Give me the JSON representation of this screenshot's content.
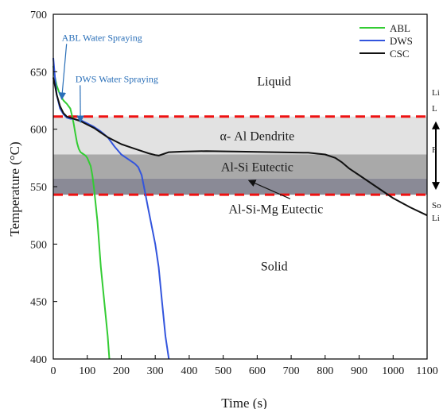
{
  "chart_data": {
    "type": "line",
    "title": "",
    "xlabel": "Time (s)",
    "ylabel": "Temperature (°C)",
    "xlim": [
      0,
      1100
    ],
    "ylim": [
      400,
      700
    ],
    "xticks": [
      0,
      100,
      200,
      300,
      400,
      500,
      600,
      700,
      800,
      900,
      1000,
      1100
    ],
    "yticks": [
      400,
      450,
      500,
      550,
      600,
      650,
      700
    ],
    "grid": false,
    "legend_position": "top-right",
    "series": [
      {
        "name": "ABL",
        "color": "#33cc33",
        "x": [
          0,
          5,
          10,
          20,
          30,
          40,
          50,
          55,
          60,
          65,
          70,
          75,
          80,
          85,
          90,
          95,
          100,
          110,
          115,
          120,
          130,
          140,
          150,
          160,
          165
        ],
        "y": [
          655,
          645,
          638,
          630,
          625,
          622,
          618,
          612,
          605,
          596,
          588,
          583,
          580,
          579,
          578,
          577,
          575,
          568,
          560,
          548,
          520,
          480,
          450,
          420,
          400
        ]
      },
      {
        "name": "DWS",
        "color": "#3355dd",
        "x": [
          0,
          5,
          10,
          20,
          30,
          40,
          50,
          60,
          70,
          80,
          100,
          120,
          140,
          160,
          180,
          200,
          220,
          240,
          250,
          260,
          270,
          280,
          290,
          300,
          310,
          320,
          330,
          340
        ],
        "y": [
          662,
          645,
          630,
          618,
          613,
          610,
          609,
          609,
          608,
          608,
          605,
          602,
          598,
          593,
          585,
          578,
          574,
          570,
          567,
          560,
          545,
          530,
          515,
          500,
          480,
          450,
          420,
          400
        ]
      },
      {
        "name": "CSC",
        "color": "#111111",
        "x": [
          0,
          5,
          10,
          20,
          30,
          40,
          50,
          60,
          80,
          100,
          120,
          140,
          160,
          180,
          200,
          220,
          240,
          260,
          280,
          300,
          310,
          320,
          340,
          380,
          450,
          550,
          650,
          750,
          800,
          830,
          850,
          870,
          900,
          950,
          1000,
          1050,
          1100
        ],
        "y": [
          645,
          638,
          630,
          620,
          614,
          611,
          610,
          609,
          607,
          604,
          601,
          597,
          593,
          590,
          587,
          585,
          583,
          581,
          579,
          577.5,
          577,
          578,
          580,
          580.5,
          581,
          580.5,
          580,
          579.5,
          578,
          575,
          571,
          566,
          560,
          550,
          540,
          532,
          525
        ]
      }
    ],
    "bands": [
      {
        "label": "α- Al Dendrite",
        "y_from": 578,
        "y_to": 611,
        "color": "#e2e2e2"
      },
      {
        "label": "Al-Si Eutectic",
        "y_from": 557,
        "y_to": 578,
        "color": "#a9a9a9"
      },
      {
        "label": "",
        "y_from": 543,
        "y_to": 557,
        "color": "#8a8a96"
      }
    ],
    "reference_lines": [
      {
        "y": 611,
        "style": "dashed",
        "color": "#ee1111"
      },
      {
        "y": 543,
        "style": "dashed",
        "color": "#ee1111"
      }
    ],
    "region_labels": [
      {
        "text": "Liquid",
        "x": 650,
        "y": 638
      },
      {
        "text": "Solid",
        "x": 650,
        "y": 477
      }
    ],
    "annotations": [
      {
        "text": "ABL Water Spraying",
        "x": 25,
        "y": 677,
        "arrow_to": [
          25,
          627
        ],
        "color": "#2a6fb8"
      },
      {
        "text": "DWS Water Spraying",
        "x": 65,
        "y": 641,
        "arrow_to": [
          80,
          607
        ],
        "color": "#2a6fb8"
      },
      {
        "text": "Al-Si-Mg Eutectic",
        "x": 655,
        "y": 527,
        "arrow_to": [
          578,
          555
        ],
        "color": "#111111"
      }
    ],
    "right_edge_labels": [
      "Li",
      "L",
      "F",
      "So",
      "Li"
    ]
  }
}
